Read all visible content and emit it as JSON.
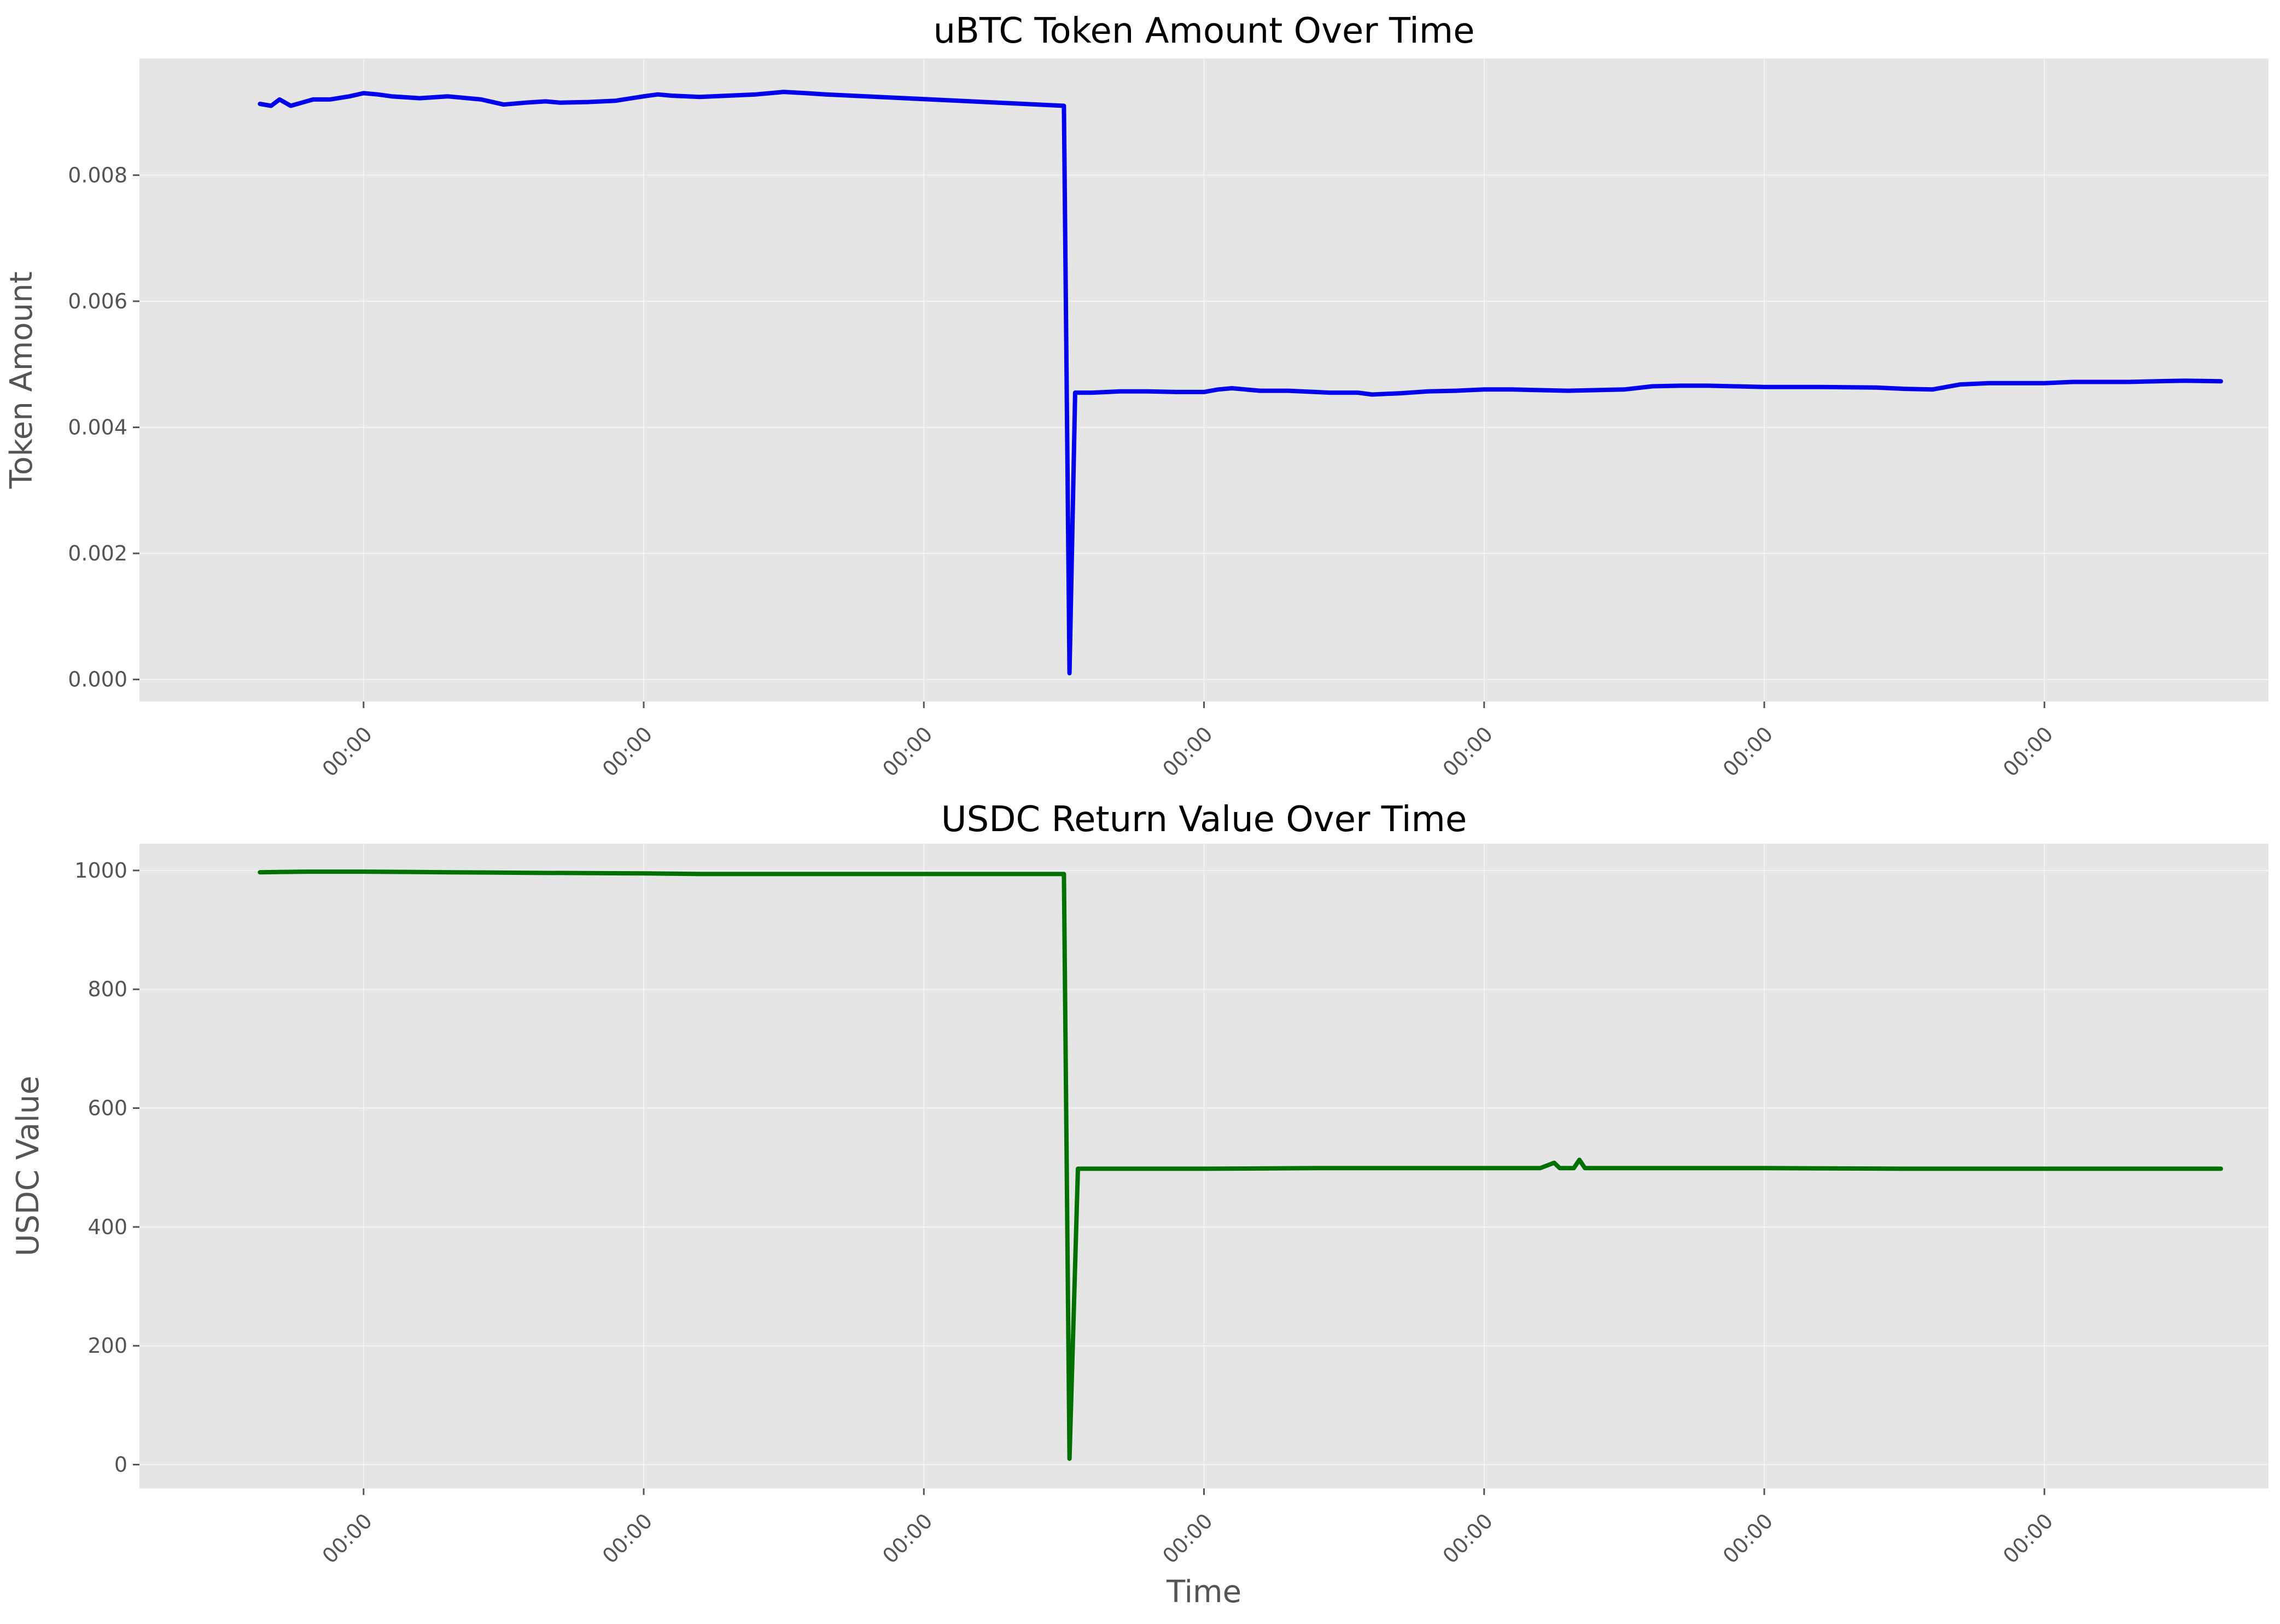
{
  "chart_data": [
    {
      "type": "line",
      "title": "uBTC Token Amount Over Time",
      "xlabel": "",
      "ylabel": "Token Amount",
      "ylim": [
        -0.00035,
        0.00985
      ],
      "yticks": [
        0.0,
        0.002,
        0.004,
        0.006,
        0.008
      ],
      "ytick_labels": [
        "0.000",
        "0.002",
        "0.004",
        "0.006",
        "0.008"
      ],
      "xlim": [
        -0.8,
        6.8
      ],
      "xticks": [
        0,
        1,
        2,
        3,
        4,
        5,
        6
      ],
      "xtick_labels": [
        "00:00",
        "00:00",
        "00:00",
        "00:00",
        "00:00",
        "00:00",
        "00:00"
      ],
      "grid": true,
      "series": [
        {
          "color": "#0000ee",
          "x": [
            -0.37,
            -0.33,
            -0.3,
            -0.26,
            -0.22,
            -0.18,
            -0.12,
            -0.05,
            0.0,
            0.05,
            0.1,
            0.2,
            0.3,
            0.42,
            0.5,
            0.58,
            0.65,
            0.7,
            0.8,
            0.9,
            1.0,
            1.05,
            1.1,
            1.2,
            1.3,
            1.4,
            1.5,
            1.58,
            1.65,
            2.5,
            2.52,
            2.54,
            2.56,
            2.6,
            2.7,
            2.8,
            2.9,
            3.0,
            3.05,
            3.1,
            3.2,
            3.3,
            3.45,
            3.55,
            3.6,
            3.7,
            3.8,
            3.9,
            4.0,
            4.1,
            4.3,
            4.5,
            4.6,
            4.7,
            4.8,
            5.0,
            5.2,
            5.4,
            5.5,
            5.6,
            5.7,
            5.8,
            6.0,
            6.1,
            6.2,
            6.3,
            6.4,
            6.5,
            6.63
          ],
          "y": [
            0.00913,
            0.0091,
            0.0092,
            0.0091,
            0.00915,
            0.0092,
            0.0092,
            0.00925,
            0.0093,
            0.00928,
            0.00925,
            0.00922,
            0.00925,
            0.0092,
            0.00912,
            0.00915,
            0.00917,
            0.00915,
            0.00916,
            0.00918,
            0.00925,
            0.00928,
            0.00926,
            0.00924,
            0.00926,
            0.00928,
            0.00932,
            0.0093,
            0.00928,
            0.0091,
            0.0001,
            0.00455,
            0.00455,
            0.00455,
            0.00457,
            0.00457,
            0.00456,
            0.00456,
            0.0046,
            0.00462,
            0.00458,
            0.00458,
            0.00455,
            0.00455,
            0.00452,
            0.00454,
            0.00457,
            0.00458,
            0.0046,
            0.0046,
            0.00458,
            0.0046,
            0.00465,
            0.00466,
            0.00466,
            0.00464,
            0.00464,
            0.00463,
            0.00461,
            0.0046,
            0.00468,
            0.0047,
            0.0047,
            0.00472,
            0.00472,
            0.00472,
            0.00473,
            0.00474,
            0.00473
          ]
        }
      ]
    },
    {
      "type": "line",
      "title": "USDC Return Value Over Time",
      "xlabel": "Time",
      "ylabel": "USDC Value",
      "ylim": [
        -40,
        1045
      ],
      "yticks": [
        0,
        200,
        400,
        600,
        800,
        1000
      ],
      "ytick_labels": [
        "0",
        "200",
        "400",
        "600",
        "800",
        "1000"
      ],
      "xlim": [
        -0.8,
        6.8
      ],
      "xticks": [
        0,
        1,
        2,
        3,
        4,
        5,
        6
      ],
      "xtick_labels": [
        "00:00",
        "00:00",
        "00:00",
        "00:00",
        "00:00",
        "00:00",
        "00:00"
      ],
      "grid": true,
      "series": [
        {
          "color": "#007000",
          "x": [
            -0.37,
            -0.2,
            0.0,
            0.3,
            0.6,
            1.0,
            1.2,
            1.5,
            2.0,
            2.5,
            2.52,
            2.55,
            2.6,
            3.0,
            3.4,
            3.8,
            4.2,
            4.25,
            4.27,
            4.32,
            4.34,
            4.36,
            4.6,
            5.0,
            5.5,
            6.0,
            6.63
          ],
          "y": [
            997,
            998,
            998,
            997,
            996,
            995,
            994,
            994,
            994,
            994,
            10,
            498,
            498,
            498,
            499,
            499,
            499,
            508,
            499,
            499,
            513,
            499,
            499,
            499,
            498,
            498,
            498
          ]
        }
      ]
    }
  ]
}
